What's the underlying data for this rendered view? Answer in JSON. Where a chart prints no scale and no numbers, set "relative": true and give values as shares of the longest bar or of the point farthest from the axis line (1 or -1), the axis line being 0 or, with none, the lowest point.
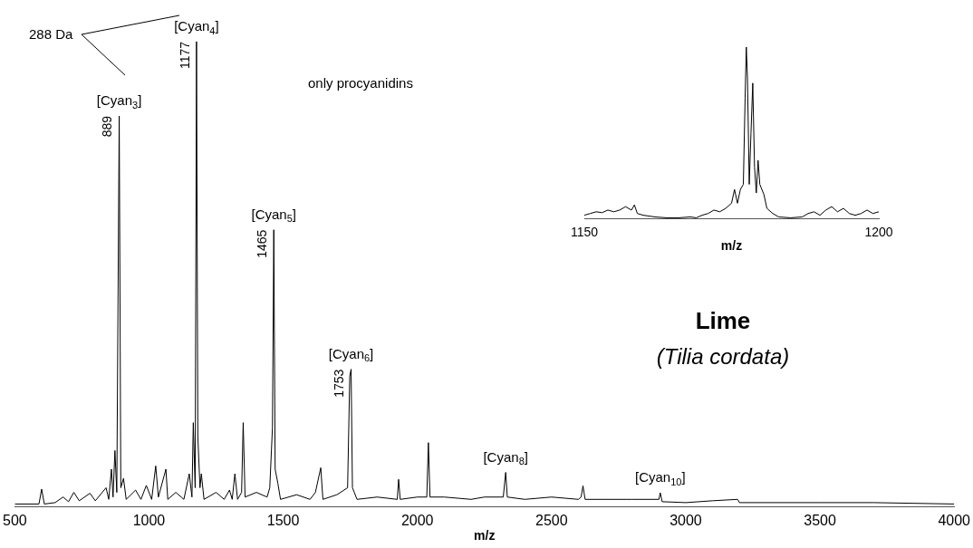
{
  "chart_data": [
    {
      "type": "line",
      "title": "Lime",
      "subtitle": "(Tilia cordata)",
      "xlabel": "m/z",
      "relative": true,
      "xlim": [
        500,
        4000
      ],
      "xticks": [
        500,
        1000,
        1500,
        2000,
        2500,
        3000,
        3500,
        4000
      ],
      "marker": "none",
      "annotations": [
        "288 Da",
        "only procyanidins",
        {
          "text": "889",
          "x": 889,
          "y": 0.84
        },
        {
          "text": "1177",
          "x": 1177,
          "y": 1.0
        },
        {
          "text": "1465",
          "x": 1465,
          "y": 0.595
        },
        {
          "text": "1753",
          "x": 1753,
          "y": 0.295
        },
        {
          "text": "[Cyan$_{3}$]",
          "x": 889,
          "y": 0.84
        },
        {
          "text": "[Cyan$_{4}$]",
          "x": 1177,
          "y": 1.0
        },
        {
          "text": "[Cyan$_{5}$]",
          "x": 1465,
          "y": 0.595
        },
        {
          "text": "[Cyan$_{6}$]",
          "x": 1753,
          "y": 0.295
        },
        {
          "text": "[Cyan$_{8}$]",
          "x": 2329,
          "y": 0.073
        },
        {
          "text": "[Cyan$_{10}$]",
          "x": 2905,
          "y": 0.029
        }
      ],
      "x": [
        500,
        590,
        600,
        610,
        650,
        680,
        700,
        720,
        740,
        780,
        800,
        840,
        850,
        860,
        866,
        873,
        880,
        889,
        895,
        905,
        915,
        950,
        970,
        990,
        1010,
        1025,
        1035,
        1063,
        1070,
        1100,
        1130,
        1150,
        1160,
        1165,
        1172,
        1177,
        1182,
        1190,
        1195,
        1205,
        1250,
        1280,
        1300,
        1310,
        1320,
        1330,
        1345,
        1351,
        1358,
        1400,
        1440,
        1450,
        1460,
        1465,
        1470,
        1480,
        1490,
        1550,
        1600,
        1620,
        1640,
        1648,
        1700,
        1740,
        1748,
        1753,
        1758,
        1765,
        1775,
        1850,
        1925,
        1930,
        1936,
        2000,
        2035,
        2041,
        2047,
        2100,
        2200,
        2250,
        2320,
        2329,
        2335,
        2400,
        2500,
        2600,
        2610,
        2617,
        2625,
        2700,
        2800,
        2900,
        2905,
        2912,
        3000,
        3100,
        3193,
        3200,
        3500,
        3700,
        4000
      ],
      "series": [
        {
          "color": "#000000",
          "values": [
            0.005,
            0.005,
            0.037,
            0.005,
            0.008,
            0.02,
            0.01,
            0.03,
            0.012,
            0.028,
            0.012,
            0.04,
            0.015,
            0.08,
            0.02,
            0.12,
            0.03,
            0.84,
            0.04,
            0.06,
            0.015,
            0.035,
            0.015,
            0.045,
            0.015,
            0.087,
            0.02,
            0.08,
            0.015,
            0.03,
            0.015,
            0.07,
            0.02,
            0.18,
            0.04,
            1.0,
            0.15,
            0.04,
            0.07,
            0.015,
            0.03,
            0.015,
            0.035,
            0.015,
            0.07,
            0.015,
            0.03,
            0.18,
            0.02,
            0.03,
            0.02,
            0.04,
            0.17,
            0.595,
            0.08,
            0.05,
            0.015,
            0.025,
            0.015,
            0.03,
            0.083,
            0.015,
            0.025,
            0.04,
            0.28,
            0.295,
            0.04,
            0.03,
            0.015,
            0.02,
            0.015,
            0.058,
            0.015,
            0.02,
            0.02,
            0.137,
            0.02,
            0.02,
            0.015,
            0.02,
            0.02,
            0.073,
            0.02,
            0.015,
            0.02,
            0.015,
            0.02,
            0.044,
            0.015,
            0.015,
            0.015,
            0.015,
            0.029,
            0.01,
            0.008,
            0.012,
            0.015,
            0.008,
            0.008,
            0.008,
            0.005
          ]
        }
      ]
    },
    {
      "type": "line",
      "xlabel": "m/z",
      "relative": true,
      "xlim": [
        1150,
        1200
      ],
      "xticks": [
        1150,
        1200
      ],
      "marker": "none",
      "x": [
        1150,
        1151,
        1152,
        1153,
        1154,
        1155,
        1156,
        1157,
        1158,
        1158.5,
        1159,
        1160,
        1162,
        1164,
        1166,
        1168,
        1169,
        1170,
        1171,
        1172,
        1173,
        1174,
        1175,
        1175.5,
        1176,
        1176.5,
        1177,
        1177.3,
        1177.5,
        1177.7,
        1178,
        1178.3,
        1178.6,
        1178.9,
        1179.2,
        1179.5,
        1179.8,
        1180.5,
        1181,
        1182,
        1183,
        1185,
        1187,
        1188,
        1189,
        1190,
        1191,
        1192,
        1193,
        1194,
        1195,
        1196,
        1197,
        1198,
        1199,
        1200
      ],
      "series": [
        {
          "color": "#000000",
          "values": [
            0.02,
            0.03,
            0.04,
            0.035,
            0.05,
            0.04,
            0.05,
            0.07,
            0.05,
            0.08,
            0.03,
            0.02,
            0.01,
            0.005,
            0.005,
            0.01,
            0.005,
            0.02,
            0.03,
            0.05,
            0.04,
            0.06,
            0.09,
            0.17,
            0.09,
            0.17,
            0.2,
            0.7,
            1.0,
            0.82,
            0.2,
            0.5,
            0.79,
            0.3,
            0.15,
            0.34,
            0.2,
            0.14,
            0.06,
            0.03,
            0.01,
            0.005,
            0.01,
            0.03,
            0.04,
            0.02,
            0.05,
            0.07,
            0.04,
            0.06,
            0.03,
            0.02,
            0.03,
            0.05,
            0.03,
            0.04
          ]
        }
      ]
    }
  ]
}
